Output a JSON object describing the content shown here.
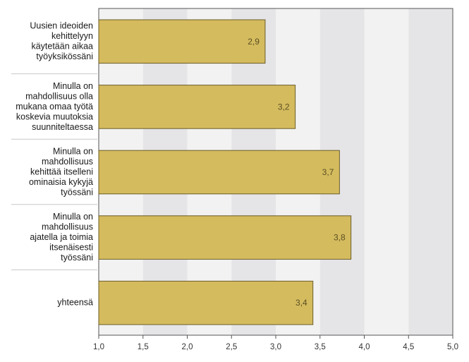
{
  "chart_data": {
    "type": "bar",
    "orientation": "horizontal",
    "categories": [
      "Uusien ideoiden kehittelyyn käytetään aikaa työyksikössäni",
      "Minulla on mahdollisuus olla mukana omaa työtä koskevia muutoksia suunniteltaessa",
      "Minulla on mahdollisuus kehittää itselleni ominaisia kykyjä työssäni",
      "Minulla on mahdollisuus ajatella ja toimia itsenäisesti työssäni",
      "yhteensä"
    ],
    "category_lines": [
      [
        "Uusien ideoiden",
        "kehittelyyn",
        "käytetään aikaa",
        "työyksikössäni"
      ],
      [
        "Minulla on",
        "mahdollisuus olla",
        "mukana omaa työtä",
        "koskevia muutoksia",
        "suunniteltaessa"
      ],
      [
        "Minulla on",
        "mahdollisuus",
        "kehittää itselleni",
        "ominaisia kykyjä",
        "työssäni"
      ],
      [
        "Minulla on",
        "mahdollisuus",
        "ajatella ja toimia",
        "itsenäisesti",
        "työssäni"
      ],
      [
        "yhteensä"
      ]
    ],
    "values": [
      2.88,
      3.22,
      3.72,
      3.85,
      3.42
    ],
    "value_labels": [
      "2,9",
      "3,2",
      "3,7",
      "3,8",
      "3,4"
    ],
    "x_ticks": [
      1.0,
      1.5,
      2.0,
      2.5,
      3.0,
      3.5,
      4.0,
      4.5,
      5.0
    ],
    "x_tick_labels": [
      "1,0",
      "1,5",
      "2,0",
      "2,5",
      "3,0",
      "3,5",
      "4,0",
      "4,5",
      "5,0"
    ],
    "xlim": [
      1.0,
      5.0
    ],
    "title": "",
    "xlabel": "",
    "ylabel": "",
    "grid": true,
    "legend": "none"
  },
  "colors": {
    "bar_fill": "#d4bb5e",
    "bar_stroke": "#6b5d2a",
    "band_light": "#f2f2f2",
    "band_dark": "#e5e5e8",
    "separator": "#c8c8c8",
    "axis": "#555555"
  }
}
